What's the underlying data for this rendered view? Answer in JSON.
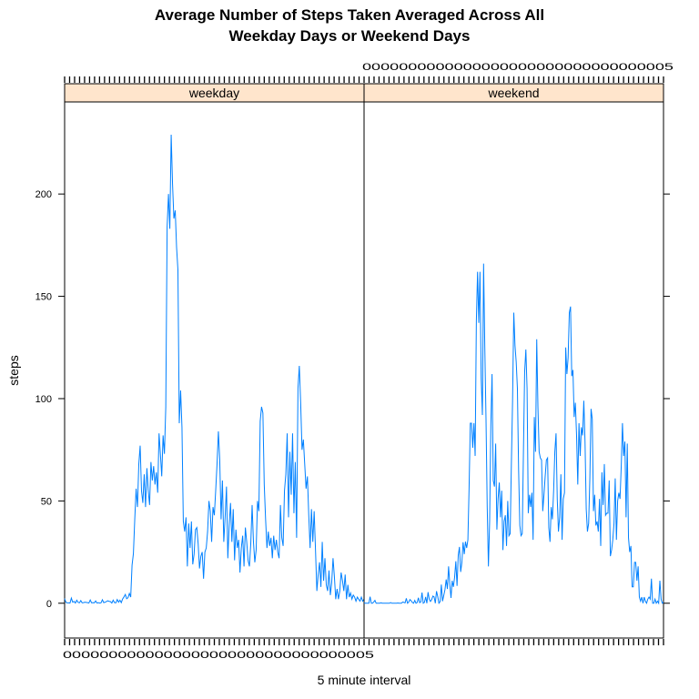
{
  "chart_data": {
    "type": "line",
    "title": [
      "Average Number of Steps Taken Averaged Across All",
      "Weekday Days or Weekend Days"
    ],
    "xlabel": "5 minute interval",
    "ylabel": "steps",
    "ylim": [
      -17,
      245
    ],
    "yticks": [
      0,
      50,
      100,
      150,
      200
    ],
    "ytick_labels": [
      "0",
      "50",
      "100",
      "150",
      "200"
    ],
    "x_tick_labels_overprinted": "0000000000000000000000000000000005",
    "top_tick_labels_overprinted": "0000000000000000000000000000000005",
    "line_color": "#0080ff",
    "strip_color": "#ffe5cc",
    "panels": [
      {
        "name": "weekday",
        "values": [
          2.3,
          0.4,
          0.2,
          0.2,
          0.1,
          2.5,
          0.5,
          0.9,
          0.1,
          1.5,
          0.4,
          0.2,
          1.3,
          0.2,
          0.3,
          0.5,
          0.4,
          0.3,
          0.1,
          1.6,
          0.2,
          0.3,
          0.2,
          1.1,
          0.1,
          0.3,
          0.1,
          0.2,
          1.7,
          0.3,
          0.5,
          0.8,
          1.2,
          0.9,
          0.8,
          0.1,
          1.5,
          0.3,
          0.2,
          1.8,
          0.5,
          1.5,
          0.3,
          2.1,
          3.1,
          4.3,
          2.2,
          2.7,
          4.8,
          3.0,
          18.6,
          24.3,
          41.0,
          56.0,
          47.0,
          68.0,
          77.0,
          55.0,
          49.0,
          63.0,
          47.0,
          66.0,
          55.0,
          48.0,
          69.0,
          60.0,
          67.0,
          58.0,
          64.0,
          54.0,
          83.0,
          73.0,
          62.0,
          82.0,
          73.0,
          96.0,
          184.0,
          200.0,
          183.0,
          229.0,
          205.0,
          188.0,
          192.0,
          174.0,
          163.0,
          88.0,
          104.0,
          86.0,
          40.0,
          35.0,
          42.0,
          18.0,
          39.0,
          27.0,
          40.0,
          19.0,
          24.0,
          36.0,
          37.0,
          29.0,
          17.0,
          23.0,
          25.0,
          12.0,
          25.0,
          27.0,
          35.0,
          50.0,
          45.0,
          30.0,
          47.0,
          43.0,
          55.0,
          68.0,
          84.0,
          70.0,
          41.0,
          60.0,
          30.0,
          42.0,
          57.0,
          22.0,
          38.0,
          49.0,
          30.0,
          46.0,
          21.0,
          36.0,
          27.0,
          31.0,
          15.0,
          27.0,
          33.0,
          18.0,
          37.0,
          30.0,
          21.0,
          18.0,
          29.0,
          48.0,
          30.0,
          20.0,
          26.0,
          50.0,
          45.0,
          89.0,
          96.0,
          93.0,
          58.0,
          41.0,
          27.0,
          35.0,
          28.0,
          32.0,
          22.0,
          33.0,
          26.0,
          31.0,
          25.0,
          22.0,
          48.0,
          32.0,
          28.0,
          55.0,
          63.0,
          83.0,
          42.0,
          74.0,
          53.0,
          83.0,
          44.0,
          69.0,
          32.0,
          105.0,
          116.0,
          98.0,
          75.0,
          80.0,
          68.0,
          56.0,
          62.0,
          43.0,
          27.0,
          46.0,
          30.0,
          45.0,
          26.0,
          6.0,
          14.0,
          20.0,
          8.0,
          30.0,
          11.0,
          22.0,
          9.0,
          6.0,
          16.0,
          4.0,
          10.0,
          22.0,
          13.0,
          2.0,
          7.0,
          2.0,
          6.0,
          15.0,
          11.0,
          6.0,
          14.0,
          2.0,
          9.0,
          3.0,
          5.0,
          2.0,
          4.0,
          3.0,
          1.0,
          3.0,
          2.0,
          1.0,
          3.0,
          1.0,
          2.0
        ]
      },
      {
        "name": "weekend",
        "values": [
          0.2,
          0.0,
          0.0,
          0.0,
          0.0,
          3.2,
          0.0,
          0.0,
          0.6,
          1.4,
          0.0,
          0.0,
          0.0,
          0.0,
          0.2,
          0.0,
          0.0,
          0.0,
          0.0,
          0.0,
          0.0,
          0.0,
          0.3,
          0.0,
          0.0,
          0.0,
          0.0,
          0.0,
          0.1,
          0.0,
          0.0,
          0.0,
          0.6,
          0.4,
          0.2,
          2.4,
          0.0,
          0.6,
          1.8,
          1.2,
          0.4,
          0.0,
          1.4,
          0.0,
          0.4,
          2.7,
          0.3,
          0.6,
          5.2,
          0.0,
          0.4,
          3.1,
          0.0,
          5.4,
          1.9,
          0.9,
          1.8,
          3.5,
          3.1,
          0.0,
          5.9,
          3.3,
          0.0,
          0.8,
          9.1,
          1.0,
          3.8,
          6.6,
          11.6,
          7.0,
          18.0,
          9.3,
          2.6,
          11.0,
          8.0,
          12.8,
          20.5,
          8.5,
          23.4,
          27.5,
          15.3,
          19.9,
          29.8,
          24.0,
          30.1,
          27.0,
          31.0,
          57.0,
          88.0,
          88.0,
          76.0,
          88.0,
          72.0,
          138.0,
          162.0,
          137.0,
          162.0,
          110.0,
          92.0,
          166.0,
          125.0,
          90.0,
          47.0,
          18.0,
          40.0,
          87.0,
          112.0,
          60.0,
          57.0,
          78.0,
          36.0,
          51.0,
          59.0,
          42.0,
          55.0,
          26.0,
          40.0,
          43.0,
          28.0,
          50.0,
          33.0,
          34.0,
          68.0,
          99.0,
          142.0,
          126.0,
          118.0,
          105.0,
          65.0,
          38.0,
          33.0,
          34.0,
          74.0,
          113.0,
          124.0,
          105.0,
          44.0,
          53.0,
          47.0,
          54.0,
          31.0,
          91.0,
          74.0,
          129.0,
          96.0,
          74.0,
          71.0,
          70.0,
          45.0,
          53.0,
          62.0,
          70.0,
          71.0,
          37.0,
          30.0,
          47.0,
          41.0,
          55.0,
          74.0,
          83.0,
          51.0,
          35.0,
          42.0,
          63.0,
          31.0,
          51.0,
          54.0,
          125.0,
          112.0,
          120.0,
          142.0,
          145.0,
          111.0,
          114.0,
          91.0,
          98.0,
          82.0,
          58.0,
          88.0,
          72.0,
          86.0,
          82.0,
          99.0,
          79.0,
          46.0,
          35.0,
          39.0,
          61.0,
          95.0,
          90.0,
          45.0,
          53.0,
          38.0,
          40.0,
          35.0,
          51.0,
          28.0,
          64.0,
          48.0,
          68.0,
          43.0,
          44.0,
          44.0,
          60.0,
          23.0,
          26.0,
          31.0,
          39.0,
          61.0,
          31.0,
          50.0,
          54.0,
          51.0,
          67.0,
          88.0,
          72.0,
          79.0,
          42.0,
          78.0,
          32.0,
          25.0,
          28.0,
          8.0,
          8.0,
          20.0,
          20.0,
          11.0,
          18.0,
          3.0,
          1.0,
          3.0,
          0.0,
          3.0,
          1.0,
          0.0,
          2.0,
          3.0,
          2.0,
          12.0,
          0.0,
          0.0,
          2.0,
          0.0,
          1.0,
          0.0,
          11.0,
          2.0,
          0.0,
          0.5
        ]
      }
    ]
  }
}
